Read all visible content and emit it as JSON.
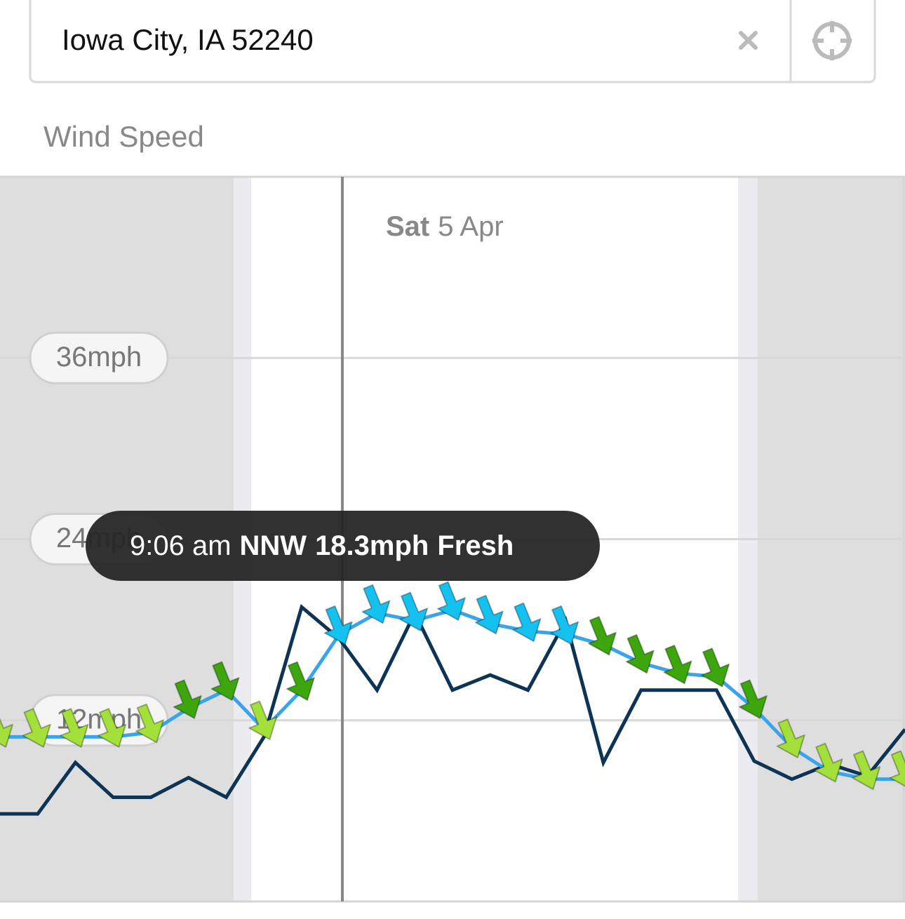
{
  "search": {
    "value": "Iowa City, IA 52240"
  },
  "section_title": "Wind Speed",
  "chart_data": {
    "type": "line",
    "day_label": {
      "weekday": "Sat",
      "date": "5 Apr"
    },
    "x": [
      0,
      1,
      2,
      3,
      4,
      5,
      6,
      7,
      8,
      9,
      10,
      11,
      12,
      13,
      14,
      15,
      16,
      17,
      18,
      19,
      20,
      21,
      22,
      23,
      24
    ],
    "xlim": [
      0,
      24
    ],
    "ylim": [
      0,
      48
    ],
    "yticks": [
      {
        "value": 12,
        "label": "12mph"
      },
      {
        "value": 24,
        "label": "24mph"
      },
      {
        "value": 36,
        "label": "36mph"
      }
    ],
    "grid": true,
    "series": [
      {
        "color": "#3aa4ea",
        "values": [
          10.9,
          10.9,
          10.9,
          10.9,
          11.2,
          12.8,
          14.0,
          11.4,
          14.0,
          17.7,
          19.1,
          18.6,
          19.3,
          18.4,
          17.9,
          17.7,
          17.0,
          15.8,
          15.1,
          14.9,
          12.8,
          10.2,
          8.6,
          8.1,
          8.1
        ],
        "point_colors": [
          "#a4e03a",
          "#a4e03a",
          "#a4e03a",
          "#a4e03a",
          "#a4e03a",
          "#3da60c",
          "#3da60c",
          "#a4e03a",
          "#3da60c",
          "#14c1ef",
          "#14c1ef",
          "#14c1ef",
          "#14c1ef",
          "#14c1ef",
          "#14c1ef",
          "#14c1ef",
          "#3da60c",
          "#3da60c",
          "#3da60c",
          "#3da60c",
          "#3da60c",
          "#a4e03a",
          "#a4e03a",
          "#a4e03a",
          "#a4e03a"
        ]
      },
      {
        "color": "#0d3454",
        "values": [
          5.8,
          5.8,
          9.2,
          6.9,
          6.9,
          8.2,
          6.9,
          10.9,
          19.5,
          17.4,
          14.0,
          19.1,
          14.0,
          15.0,
          14.0,
          18.6,
          9.2,
          14.0,
          14.0,
          14.0,
          9.3,
          8.1,
          9.1,
          8.3,
          11.4
        ]
      }
    ],
    "tooltip": {
      "time": "9:06 am",
      "direction": "NNW",
      "speed": "18.3mph",
      "description": "Fresh"
    }
  }
}
